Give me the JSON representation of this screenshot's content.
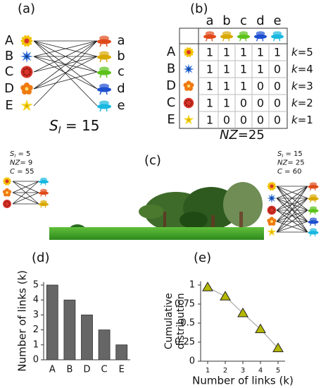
{
  "panel_a": {
    "label": "(a)",
    "plants": [
      "A",
      "B",
      "C",
      "D",
      "E"
    ],
    "animals": [
      "a",
      "b",
      "c",
      "d",
      "e"
    ],
    "stat": {
      "symbol": "S",
      "sub": "I",
      "rest": " = 15"
    }
  },
  "panel_b": {
    "label": "(b)",
    "columns": [
      "a",
      "b",
      "c",
      "d",
      "e"
    ],
    "rows": [
      "A",
      "B",
      "D",
      "C",
      "E"
    ],
    "matrix": [
      [
        1,
        1,
        1,
        1,
        1
      ],
      [
        1,
        1,
        1,
        1,
        0
      ],
      [
        1,
        1,
        1,
        0,
        0
      ],
      [
        1,
        1,
        0,
        0,
        0
      ],
      [
        1,
        0,
        0,
        0,
        0
      ]
    ],
    "k_labels": [
      {
        "symbol": "k",
        "rest": "=5"
      },
      {
        "symbol": "k",
        "rest": "=4"
      },
      {
        "symbol": "k",
        "rest": "=3"
      },
      {
        "symbol": "k",
        "rest": "=2"
      },
      {
        "symbol": "k",
        "rest": "=1"
      }
    ],
    "footer": {
      "symbol": "NZ",
      "rest": "=25"
    }
  },
  "panel_c": {
    "label": "(c)",
    "left_stats": [
      {
        "symbol": "S",
        "sub": "I",
        "rest": " = 5"
      },
      {
        "symbol": "NZ",
        "rest": "= 9"
      },
      {
        "symbol": "C",
        "rest": " = 55"
      }
    ],
    "right_stats": [
      {
        "symbol": "S",
        "sub": "I",
        "rest": " = 15"
      },
      {
        "symbol": "NZ",
        "rest": "= 25"
      },
      {
        "symbol": "C",
        "rest": " = 60"
      }
    ]
  },
  "chart_data": [
    {
      "type": "bar",
      "label": "(d)",
      "categories": [
        "A",
        "B",
        "D",
        "C",
        "E"
      ],
      "values": [
        5,
        4,
        3,
        2,
        1
      ],
      "color": "#666666",
      "ylabel": "Number of links (k)",
      "ylim": [
        0,
        5.2
      ],
      "yticks": [
        0,
        1,
        2,
        3,
        4,
        5
      ]
    },
    {
      "type": "line",
      "label": "(e)",
      "x": [
        1,
        2,
        3,
        4,
        5
      ],
      "values": [
        0.97,
        0.85,
        0.63,
        0.42,
        0.17
      ],
      "color": "#b5b800",
      "xlabel": "Number of links (k)",
      "ylabel": [
        "Cumulative",
        "distribution"
      ],
      "xlim": [
        0.6,
        5.4
      ],
      "xticks": [
        1,
        2,
        3,
        4,
        5
      ],
      "ylim": [
        0,
        1.05
      ],
      "yticks": [
        0,
        0.25,
        0.5,
        0.75,
        1
      ]
    }
  ]
}
